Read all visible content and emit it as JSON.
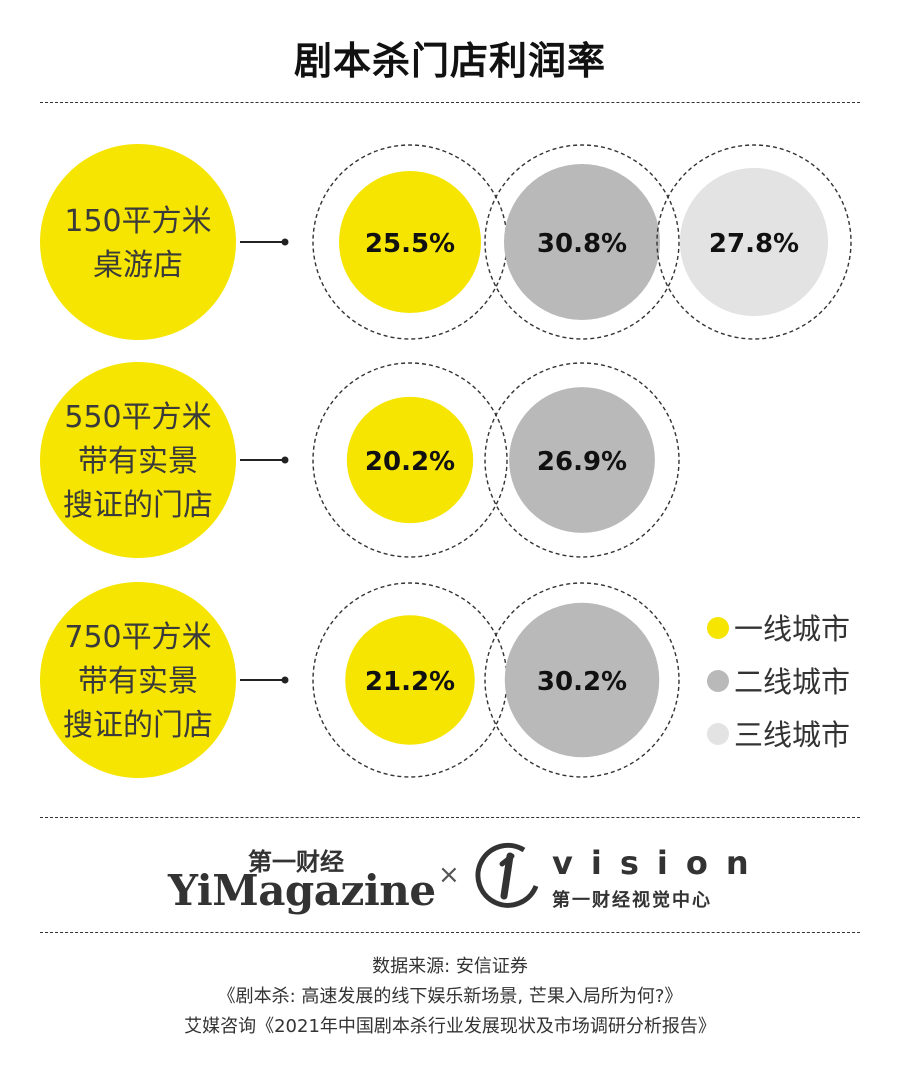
{
  "title": "剧本杀门店利润率",
  "chart_data": {
    "type": "bubble-comparison",
    "title": "剧本杀门店利润率",
    "unit": "%",
    "groups": [
      {
        "label_lines": [
          "150平方米",
          "桌游店"
        ],
        "values": [
          25.5,
          30.8,
          27.8
        ],
        "labels": [
          "25.5%",
          "30.8%",
          "27.8%"
        ]
      },
      {
        "label_lines": [
          "550平方米",
          "带有实景",
          "搜证的门店"
        ],
        "values": [
          20.2,
          26.9
        ],
        "labels": [
          "20.2%",
          "26.9%"
        ]
      },
      {
        "label_lines": [
          "750平方米",
          "带有实景",
          "搜证的门店"
        ],
        "values": [
          21.2,
          30.2
        ],
        "labels": [
          "21.2%",
          "30.2%"
        ]
      }
    ],
    "series": [
      {
        "name": "一线城市",
        "color": "#f6e500"
      },
      {
        "name": "二线城市",
        "color": "#b9b9b9"
      },
      {
        "name": "三线城市",
        "color": "#e3e3e3"
      }
    ],
    "legend_position": "right"
  },
  "branding": {
    "yimagazine_cn": "第一财经",
    "yimagazine_en": "YiMagazine",
    "separator": "×",
    "vision_en": "vision",
    "vision_cn": "第一财经视觉中心"
  },
  "sources": {
    "line1": "数据来源: 安信证券",
    "line2": "《剧本杀: 高速发展的线下娱乐新场景, 芒果入局所为何?》",
    "line3": "艾媒咨询《2021年中国剧本杀行业发展现状及市场调研分析报告》"
  }
}
